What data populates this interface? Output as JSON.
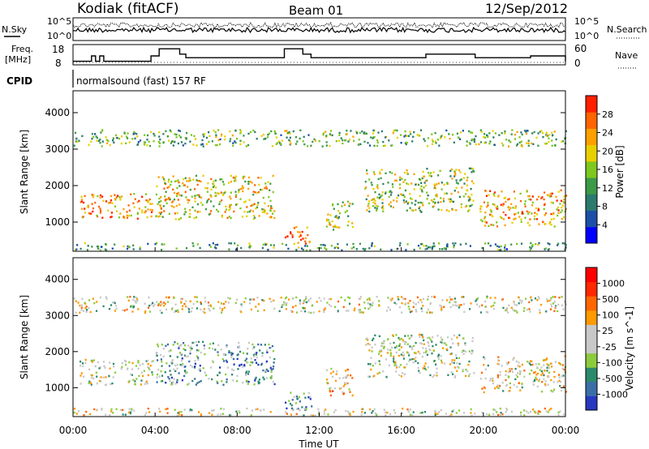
{
  "header": {
    "radar": "Kodiak (fitACF)",
    "beam": "Beam 01",
    "date": "12/Sep/2012"
  },
  "noise_panel": {
    "left_label": "N.Sky",
    "right_label": "N.Search",
    "left_ticks": [
      "10^5",
      "10^0"
    ],
    "right_ticks": [
      "10^5",
      "10^0"
    ]
  },
  "freq_panel": {
    "left_label_1": "Freq.",
    "left_label_2": "[MHz]",
    "left_ticks": [
      "18",
      "8"
    ],
    "right_label": "Nave",
    "right_ticks": [
      "60",
      "0"
    ]
  },
  "cpid": {
    "label": "CPID",
    "text": "normalsound (fast) 157 RF"
  },
  "x_axis": {
    "label": "Time UT",
    "ticks": [
      "00:00",
      "04:00",
      "08:00",
      "12:00",
      "16:00",
      "20:00",
      "00:00"
    ]
  },
  "colors": {
    "power_scale": [
      "#0000ff",
      "#1c4fa8",
      "#2c7a6e",
      "#3c9a48",
      "#7ec820",
      "#e8d000",
      "#ffa000",
      "#ff6400",
      "#ff2000"
    ],
    "velocity_scale": [
      "#2838c0",
      "#3c6ea8",
      "#2c8a6c",
      "#8ccc3c",
      "#c8c8c8",
      "#c8c8c8",
      "#ff9a00",
      "#ff6600",
      "#ff2800",
      "#ff0000"
    ]
  },
  "chart_data": [
    {
      "type": "line",
      "name": "noise",
      "xlabel": "",
      "ylabel": "",
      "xlim": [
        0,
        24
      ],
      "note_series": [
        "N.Sky",
        "N.Search"
      ]
    },
    {
      "type": "line",
      "name": "frequency",
      "x": [
        0,
        0.7,
        0.9,
        1.1,
        1.3,
        1.5,
        3.5,
        3.8,
        4.2,
        4.6,
        5.2,
        5.5,
        10,
        10.3,
        10.6,
        11.2,
        11.6,
        12,
        17,
        17.2,
        19.4,
        19.6,
        22,
        22.3,
        24
      ],
      "values": [
        10,
        10,
        13,
        10,
        13,
        10,
        10,
        13,
        17,
        17,
        14,
        12,
        12,
        17,
        17,
        14,
        12,
        12,
        12,
        14,
        14,
        12,
        12,
        13,
        10
      ],
      "ylim": [
        8,
        18
      ],
      "xlim": [
        0,
        24
      ]
    },
    {
      "type": "heatmap",
      "title": "",
      "xlabel": "Time UT",
      "ylabel": "Slant Range [km]",
      "yticks": [
        "1000",
        "2000",
        "3000",
        "4000"
      ],
      "ylim": [
        200,
        4600
      ],
      "xlim": [
        0,
        24
      ],
      "colorbar_label": "Power [dB]",
      "colorbar_ticks": [
        "4",
        "8",
        "12",
        "16",
        "20",
        "24",
        "28"
      ],
      "regions": [
        {
          "t": [
            0.3,
            3.9
          ],
          "r": [
            1100,
            1800
          ],
          "level": 0.75
        },
        {
          "t": [
            4.0,
            9.8
          ],
          "r": [
            1100,
            2300
          ],
          "level": 0.6
        },
        {
          "t": [
            10.3,
            11.6
          ],
          "r": [
            400,
            900
          ],
          "level": 0.85
        },
        {
          "t": [
            12.3,
            13.6
          ],
          "r": [
            800,
            1600
          ],
          "level": 0.55
        },
        {
          "t": [
            14.2,
            19.5
          ],
          "r": [
            1300,
            2500
          ],
          "level": 0.5
        },
        {
          "t": [
            19.8,
            24.0
          ],
          "r": [
            900,
            1900
          ],
          "level": 0.7
        },
        {
          "t": [
            0.0,
            24.0
          ],
          "r": [
            3100,
            3550
          ],
          "level": 0.45
        },
        {
          "t": [
            0.0,
            24.0
          ],
          "r": [
            250,
            450
          ],
          "level": 0.35
        }
      ]
    },
    {
      "type": "heatmap",
      "title": "",
      "xlabel": "Time UT",
      "ylabel": "Slant Range [km]",
      "yticks": [
        "1000",
        "2000",
        "3000",
        "4000"
      ],
      "ylim": [
        200,
        4600
      ],
      "xlim": [
        0,
        24
      ],
      "colorbar_label": "Velocity [m s^-1]",
      "colorbar_ticks": [
        "1000",
        "500",
        "100",
        "25",
        "-25",
        "-100",
        "-500",
        "-1000"
      ],
      "regions": [
        {
          "t": [
            0.3,
            3.9
          ],
          "r": [
            1100,
            1800
          ],
          "level": 0.45
        },
        {
          "t": [
            4.0,
            9.8
          ],
          "r": [
            1100,
            2300
          ],
          "level": 0.3
        },
        {
          "t": [
            10.3,
            11.6
          ],
          "r": [
            400,
            900
          ],
          "level": 0.2
        },
        {
          "t": [
            12.3,
            13.6
          ],
          "r": [
            800,
            1600
          ],
          "level": 0.6
        },
        {
          "t": [
            14.2,
            19.5
          ],
          "r": [
            1300,
            2500
          ],
          "level": 0.45
        },
        {
          "t": [
            19.8,
            24.0
          ],
          "r": [
            900,
            1900
          ],
          "level": 0.5
        },
        {
          "t": [
            0.0,
            24.0
          ],
          "r": [
            3100,
            3550
          ],
          "level": 0.5
        },
        {
          "t": [
            0.0,
            24.0
          ],
          "r": [
            250,
            450
          ],
          "level": 0.5
        }
      ]
    }
  ]
}
